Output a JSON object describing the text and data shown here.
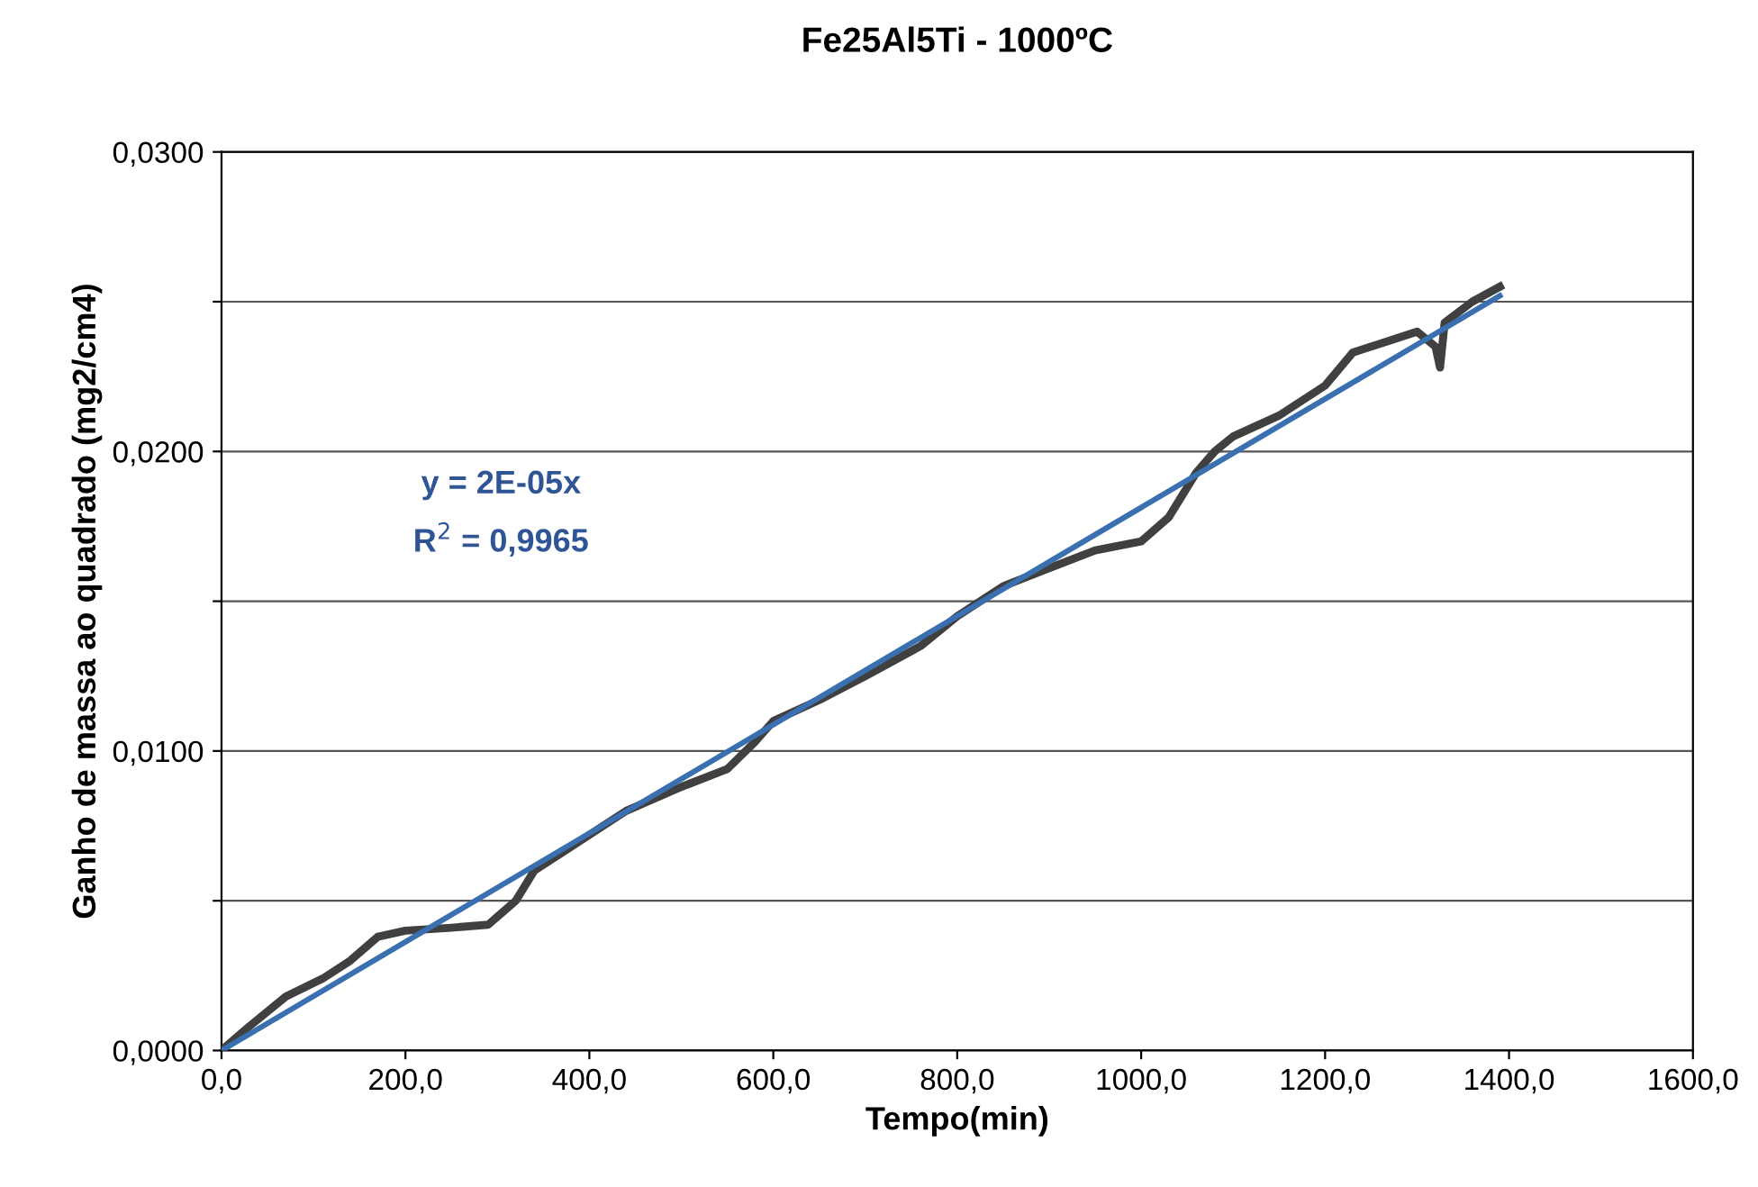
{
  "chart_data": {
    "type": "line",
    "title": "Fe25Al5Ti - 1000ºC",
    "xlabel": "Tempo(min)",
    "ylabel": "Ganho de massa ao quadrado (mg2/cm4)",
    "xlim": [
      0,
      1600
    ],
    "ylim": [
      0,
      0.03
    ],
    "xticks": [
      {
        "value": 0,
        "label": "0,0"
      },
      {
        "value": 200,
        "label": "200,0"
      },
      {
        "value": 400,
        "label": "400,0"
      },
      {
        "value": 600,
        "label": "600,0"
      },
      {
        "value": 800,
        "label": "800,0"
      },
      {
        "value": 1000,
        "label": "1000,0"
      },
      {
        "value": 1200,
        "label": "1200,0"
      },
      {
        "value": 1400,
        "label": "1400,0"
      },
      {
        "value": 1600,
        "label": "1600,0"
      }
    ],
    "yticks": [
      {
        "value": 0,
        "label": "0,0000"
      },
      {
        "value": 0.005,
        "label": null
      },
      {
        "value": 0.01,
        "label": "0,0100"
      },
      {
        "value": 0.015,
        "label": null
      },
      {
        "value": 0.02,
        "label": "0,0200"
      },
      {
        "value": 0.025,
        "label": null
      },
      {
        "value": 0.03,
        "label": "0,0300"
      }
    ],
    "grid": "y",
    "marker": "none",
    "line_style": "solid",
    "series": [
      {
        "color": "#404040",
        "x": [
          0,
          30,
          70,
          110,
          140,
          170,
          200,
          250,
          290,
          320,
          340,
          380,
          440,
          500,
          550,
          580,
          600,
          650,
          700,
          760,
          800,
          850,
          900,
          950,
          1000,
          1030,
          1060,
          1080,
          1100,
          1150,
          1200,
          1230,
          1270,
          1300,
          1320,
          1325,
          1330,
          1360,
          1390
        ],
        "values": [
          0,
          0.0008,
          0.0018,
          0.0024,
          0.003,
          0.0038,
          0.004,
          0.0041,
          0.0042,
          0.005,
          0.006,
          0.0068,
          0.008,
          0.0088,
          0.0094,
          0.0103,
          0.011,
          0.0117,
          0.0125,
          0.0135,
          0.0145,
          0.0155,
          0.0161,
          0.0167,
          0.017,
          0.0178,
          0.0193,
          0.02,
          0.0205,
          0.0212,
          0.0222,
          0.0233,
          0.0237,
          0.024,
          0.0235,
          0.0228,
          0.0243,
          0.025,
          0.0255
        ]
      },
      {
        "color": "#3a6fb0",
        "x": [
          0,
          1390
        ],
        "values": [
          0,
          0.0252
        ]
      }
    ],
    "annotations": [
      "y = 2E-05x",
      "R$^{2}$ = 0,9965"
    ]
  }
}
